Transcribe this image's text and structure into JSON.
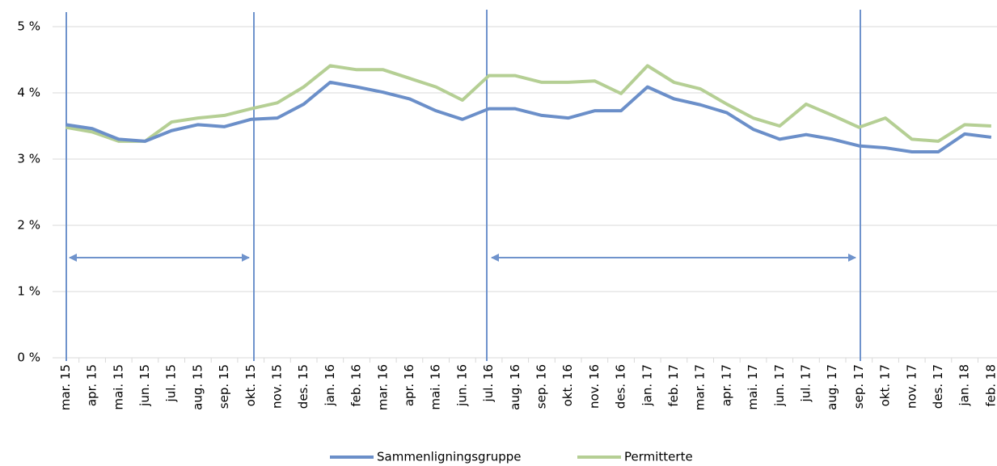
{
  "chart_data": {
    "type": "line",
    "categories": [
      "mar. 15",
      "apr. 15",
      "mai. 15",
      "jun. 15",
      "jul. 15",
      "aug. 15",
      "sep. 15",
      "okt. 15",
      "nov. 15",
      "des. 15",
      "jan. 16",
      "feb. 16",
      "mar. 16",
      "apr. 16",
      "mai. 16",
      "jun. 16",
      "jul. 16",
      "aug. 16",
      "sep. 16",
      "okt. 16",
      "nov. 16",
      "des. 16",
      "jan. 17",
      "feb. 17",
      "mar. 17",
      "apr. 17",
      "mai. 17",
      "jun. 17",
      "jul. 17",
      "aug. 17",
      "sep. 17",
      "okt. 17",
      "nov. 17",
      "des. 17",
      "jan. 18",
      "feb. 18"
    ],
    "series": [
      {
        "name": "Sammenligningsgruppe",
        "color": "#6b8fc9",
        "values": [
          3.52,
          3.46,
          3.3,
          3.27,
          3.43,
          3.52,
          3.49,
          3.6,
          3.62,
          3.83,
          4.16,
          4.09,
          4.01,
          3.91,
          3.73,
          3.6,
          3.76,
          3.76,
          3.66,
          3.62,
          3.73,
          3.73,
          4.09,
          3.91,
          3.82,
          3.7,
          3.45,
          3.3,
          3.37,
          3.3,
          3.2,
          3.17,
          3.11,
          3.11,
          3.38,
          3.33
        ]
      },
      {
        "name": "Permitterte",
        "color": "#b5cf94",
        "values": [
          3.48,
          3.41,
          3.27,
          3.27,
          3.56,
          3.62,
          3.66,
          3.76,
          3.85,
          4.09,
          4.41,
          4.35,
          4.35,
          4.22,
          4.09,
          3.89,
          4.26,
          4.26,
          4.16,
          4.16,
          4.18,
          3.99,
          4.41,
          4.16,
          4.06,
          3.83,
          3.62,
          3.5,
          3.83,
          3.66,
          3.48,
          3.62,
          3.3,
          3.27,
          3.52,
          3.5
        ]
      }
    ],
    "ylim": [
      0,
      5
    ],
    "yticks": [
      {
        "value": 0,
        "label": "0 %"
      },
      {
        "value": 1,
        "label": "1 %"
      },
      {
        "value": 2,
        "label": "2 %"
      },
      {
        "value": 3,
        "label": "3 %"
      },
      {
        "value": 4,
        "label": "4 %"
      },
      {
        "value": 5,
        "label": "5 %"
      }
    ],
    "grid": true
  }
}
